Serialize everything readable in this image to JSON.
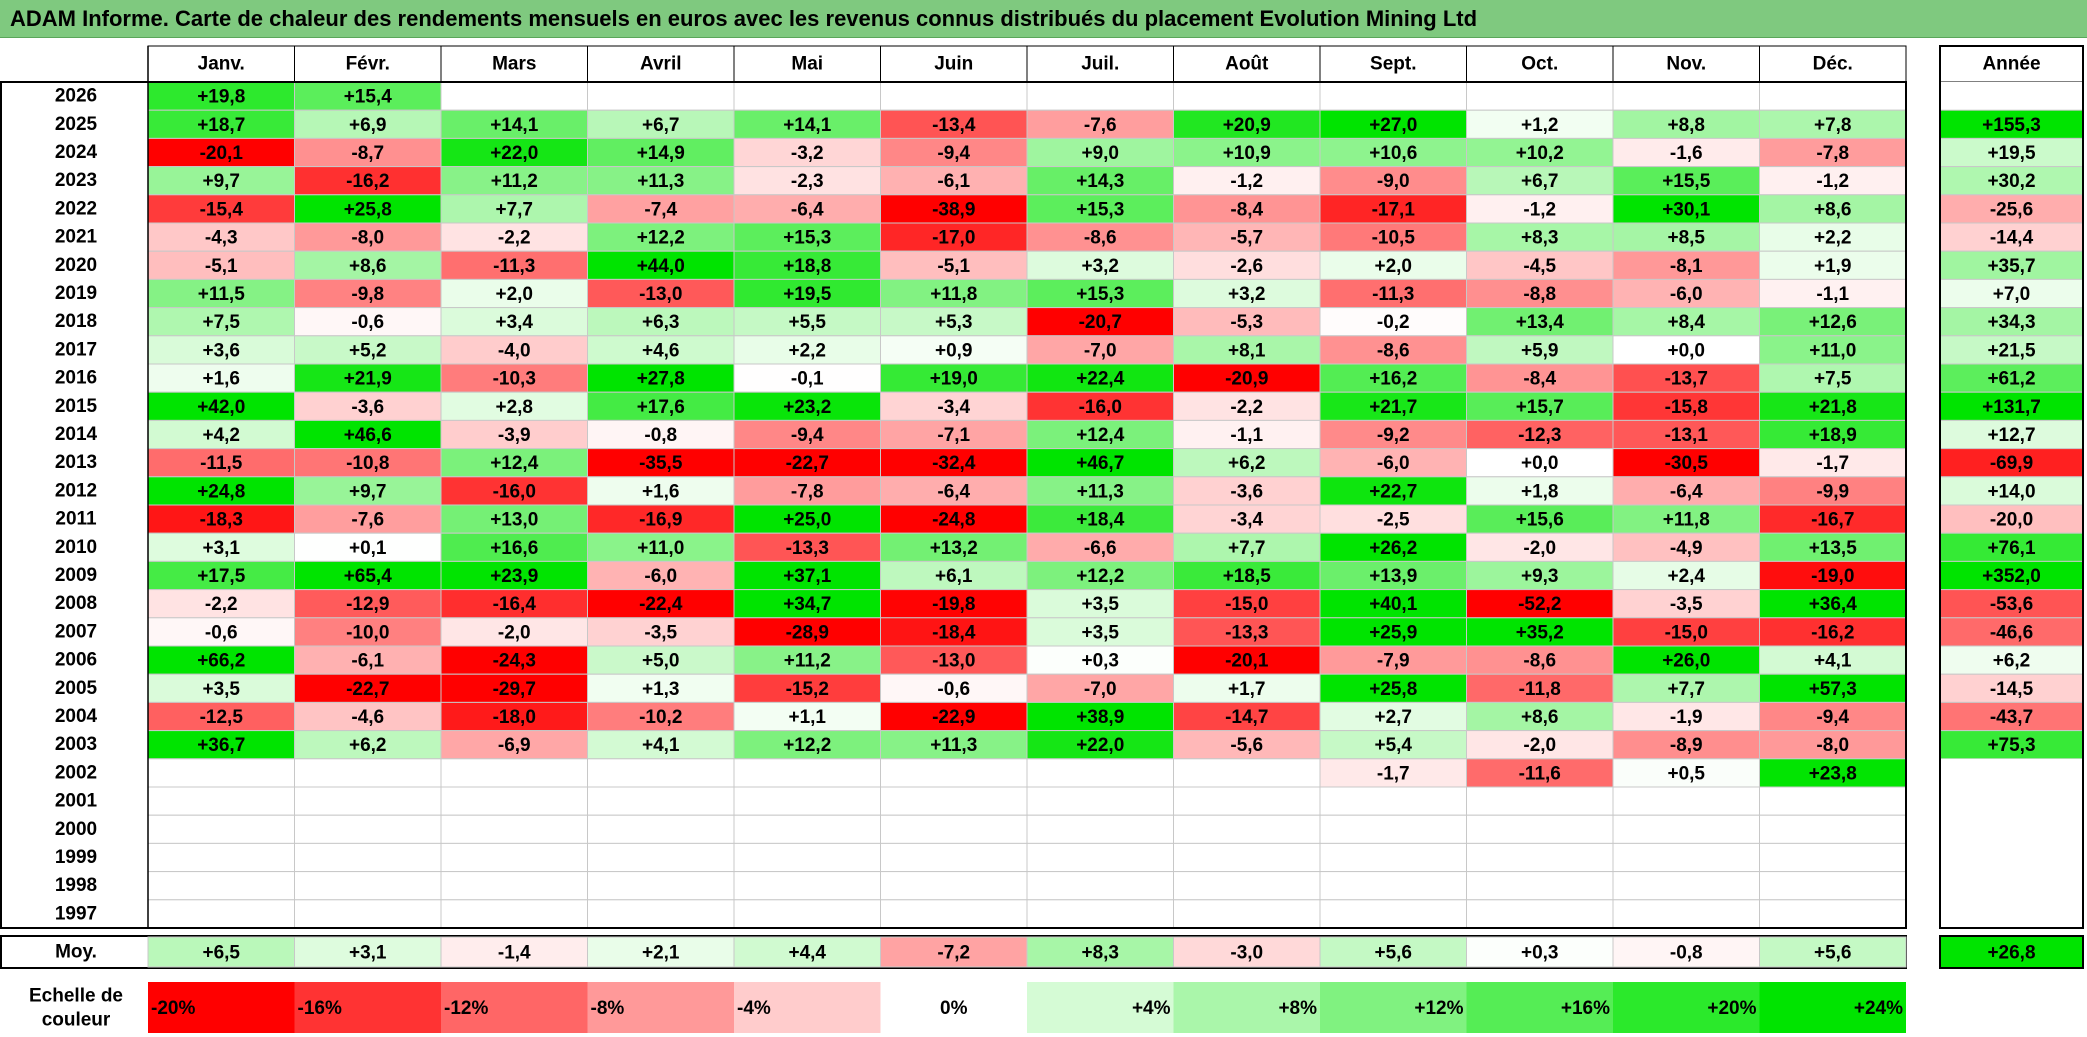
{
  "title": "ADAM Informe. Carte de chaleur des rendements mensuels en euros avec les revenus connus distribués du placement Evolution Mining Ltd",
  "chart_data": {
    "type": "heatmap",
    "title": "ADAM Informe. Carte de chaleur des rendements mensuels en euros avec les revenus connus distribués du placement Evolution Mining Ltd",
    "months": [
      "Janv.",
      "Févr.",
      "Mars",
      "Avril",
      "Mai",
      "Juin",
      "Juil.",
      "Août",
      "Sept.",
      "Oct.",
      "Nov.",
      "Déc."
    ],
    "year_header": "Année",
    "rows": [
      {
        "year": "2026",
        "values": [
          19.8,
          15.4,
          null,
          null,
          null,
          null,
          null,
          null,
          null,
          null,
          null,
          null
        ],
        "annual": null
      },
      {
        "year": "2025",
        "values": [
          18.7,
          6.9,
          14.1,
          6.7,
          14.1,
          -13.4,
          -7.6,
          20.9,
          27.0,
          1.2,
          8.8,
          7.8
        ],
        "annual": 155.3
      },
      {
        "year": "2024",
        "values": [
          -20.1,
          -8.7,
          22.0,
          14.9,
          -3.2,
          -9.4,
          9.0,
          10.9,
          10.6,
          10.2,
          -1.6,
          -7.8
        ],
        "annual": 19.5
      },
      {
        "year": "2023",
        "values": [
          9.7,
          -16.2,
          11.2,
          11.3,
          -2.3,
          -6.1,
          14.3,
          -1.2,
          -9.0,
          6.7,
          15.5,
          -1.2
        ],
        "annual": 30.2
      },
      {
        "year": "2022",
        "values": [
          -15.4,
          25.8,
          7.7,
          -7.4,
          -6.4,
          -38.9,
          15.3,
          -8.4,
          -17.1,
          -1.2,
          30.1,
          8.6
        ],
        "annual": -25.6
      },
      {
        "year": "2021",
        "values": [
          -4.3,
          -8.0,
          -2.2,
          12.2,
          15.3,
          -17.0,
          -8.6,
          -5.7,
          -10.5,
          8.3,
          8.5,
          2.2
        ],
        "annual": -14.4
      },
      {
        "year": "2020",
        "values": [
          -5.1,
          8.6,
          -11.3,
          44.0,
          18.8,
          -5.1,
          3.2,
          -2.6,
          2.0,
          -4.5,
          -8.1,
          1.9
        ],
        "annual": 35.7
      },
      {
        "year": "2019",
        "values": [
          11.5,
          -9.8,
          2.0,
          -13.0,
          19.5,
          11.8,
          15.3,
          3.2,
          -11.3,
          -8.8,
          -6.0,
          -1.1
        ],
        "annual": 7.0
      },
      {
        "year": "2018",
        "values": [
          7.5,
          -0.6,
          3.4,
          6.3,
          5.5,
          5.3,
          -20.7,
          -5.3,
          -0.2,
          13.4,
          8.4,
          12.6
        ],
        "annual": 34.3
      },
      {
        "year": "2017",
        "values": [
          3.6,
          5.2,
          -4.0,
          4.6,
          2.2,
          0.9,
          -7.0,
          8.1,
          -8.6,
          5.9,
          0.0,
          11.0
        ],
        "annual": 21.5
      },
      {
        "year": "2016",
        "values": [
          1.6,
          21.9,
          -10.3,
          27.8,
          -0.1,
          19.0,
          22.4,
          -20.9,
          16.2,
          -8.4,
          -13.7,
          7.5
        ],
        "annual": 61.2
      },
      {
        "year": "2015",
        "values": [
          42.0,
          -3.6,
          2.8,
          17.6,
          23.2,
          -3.4,
          -16.0,
          -2.2,
          21.7,
          15.7,
          -15.8,
          21.8
        ],
        "annual": 131.7
      },
      {
        "year": "2014",
        "values": [
          4.2,
          46.6,
          -3.9,
          -0.8,
          -9.4,
          -7.1,
          12.4,
          -1.1,
          -9.2,
          -12.3,
          -13.1,
          18.9
        ],
        "annual": 12.7
      },
      {
        "year": "2013",
        "values": [
          -11.5,
          -10.8,
          12.4,
          -35.5,
          -22.7,
          -32.4,
          46.7,
          6.2,
          -6.0,
          0.0,
          -30.5,
          -1.7
        ],
        "annual": -69.9
      },
      {
        "year": "2012",
        "values": [
          24.8,
          9.7,
          -16.0,
          1.6,
          -7.8,
          -6.4,
          11.3,
          -3.6,
          22.7,
          1.8,
          -6.4,
          -9.9
        ],
        "annual": 14.0
      },
      {
        "year": "2011",
        "values": [
          -18.3,
          -7.6,
          13.0,
          -16.9,
          25.0,
          -24.8,
          18.4,
          -3.4,
          -2.5,
          15.6,
          11.8,
          -16.7
        ],
        "annual": -20.0
      },
      {
        "year": "2010",
        "values": [
          3.1,
          0.1,
          16.6,
          11.0,
          -13.3,
          13.2,
          -6.6,
          7.7,
          26.2,
          -2.0,
          -4.9,
          13.5
        ],
        "annual": 76.1
      },
      {
        "year": "2009",
        "values": [
          17.5,
          65.4,
          23.9,
          -6.0,
          37.1,
          6.1,
          12.2,
          18.5,
          13.9,
          9.3,
          2.4,
          -19.0
        ],
        "annual": 352.0
      },
      {
        "year": "2008",
        "values": [
          -2.2,
          -12.9,
          -16.4,
          -22.4,
          34.7,
          -19.8,
          3.5,
          -15.0,
          40.1,
          -52.2,
          -3.5,
          36.4
        ],
        "annual": -53.6
      },
      {
        "year": "2007",
        "values": [
          -0.6,
          -10.0,
          -2.0,
          -3.5,
          -28.9,
          -18.4,
          3.5,
          -13.3,
          25.9,
          35.2,
          -15.0,
          -16.2
        ],
        "annual": -46.6
      },
      {
        "year": "2006",
        "values": [
          66.2,
          -6.1,
          -24.3,
          5.0,
          11.2,
          -13.0,
          0.3,
          -20.1,
          -7.9,
          -8.6,
          26.0,
          4.1
        ],
        "annual": 6.2
      },
      {
        "year": "2005",
        "values": [
          3.5,
          -22.7,
          -29.7,
          1.3,
          -15.2,
          -0.6,
          -7.0,
          1.7,
          25.8,
          -11.8,
          7.7,
          57.3
        ],
        "annual": -14.5
      },
      {
        "year": "2004",
        "values": [
          -12.5,
          -4.6,
          -18.0,
          -10.2,
          1.1,
          -22.9,
          38.9,
          -14.7,
          2.7,
          8.6,
          -1.9,
          -9.4
        ],
        "annual": -43.7
      },
      {
        "year": "2003",
        "values": [
          36.7,
          6.2,
          -6.9,
          4.1,
          12.2,
          11.3,
          22.0,
          -5.6,
          5.4,
          -2.0,
          -8.9,
          -8.0
        ],
        "annual": 75.3
      },
      {
        "year": "2002",
        "values": [
          null,
          null,
          null,
          null,
          null,
          null,
          null,
          null,
          -1.7,
          -11.6,
          0.5,
          23.8
        ],
        "annual": null
      },
      {
        "year": "2001",
        "values": [
          null,
          null,
          null,
          null,
          null,
          null,
          null,
          null,
          null,
          null,
          null,
          null
        ],
        "annual": null
      },
      {
        "year": "2000",
        "values": [
          null,
          null,
          null,
          null,
          null,
          null,
          null,
          null,
          null,
          null,
          null,
          null
        ],
        "annual": null
      },
      {
        "year": "1999",
        "values": [
          null,
          null,
          null,
          null,
          null,
          null,
          null,
          null,
          null,
          null,
          null,
          null
        ],
        "annual": null
      },
      {
        "year": "1998",
        "values": [
          null,
          null,
          null,
          null,
          null,
          null,
          null,
          null,
          null,
          null,
          null,
          null
        ],
        "annual": null
      },
      {
        "year": "1997",
        "values": [
          null,
          null,
          null,
          null,
          null,
          null,
          null,
          null,
          null,
          null,
          null,
          null
        ],
        "annual": null
      }
    ],
    "average_label": "Moy.",
    "averages": [
      6.5,
      3.1,
      -1.4,
      2.1,
      4.4,
      -7.2,
      8.3,
      -3.0,
      5.6,
      0.3,
      -0.8,
      5.6
    ],
    "average_annual": 26.8,
    "scale_label_line1": "Echelle de",
    "scale_label_line2": "couleur",
    "scale": [
      {
        "label": "-20%",
        "value": -20,
        "align": "left"
      },
      {
        "label": "-16%",
        "value": -16,
        "align": "left"
      },
      {
        "label": "-12%",
        "value": -12,
        "align": "left"
      },
      {
        "label": "-8%",
        "value": -8,
        "align": "left"
      },
      {
        "label": "-4%",
        "value": -4,
        "align": "left"
      },
      {
        "label": "0%",
        "value": 0,
        "align": "center"
      },
      {
        "label": "+4%",
        "value": 4,
        "align": "right"
      },
      {
        "label": "+8%",
        "value": 8,
        "align": "right"
      },
      {
        "label": "+12%",
        "value": 12,
        "align": "right"
      },
      {
        "label": "+16%",
        "value": 16,
        "align": "right"
      },
      {
        "label": "+20%",
        "value": 20,
        "align": "right"
      },
      {
        "label": "+24%",
        "value": 24,
        "align": "right"
      }
    ],
    "colors": {
      "negative_max": "#ff0000",
      "positive_max": "#00e400",
      "zero": "#ffffff",
      "title_bar": "#7fc97f"
    }
  }
}
